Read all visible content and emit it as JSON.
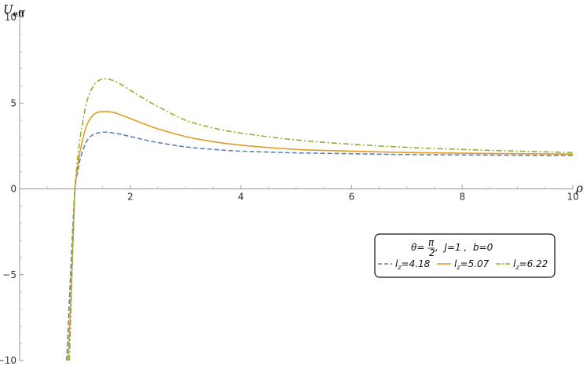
{
  "chart_data": {
    "type": "line",
    "xlabel": "ρ",
    "ylabel_main": "U",
    "ylabel_sub": "eff",
    "xlim": [
      0,
      10
    ],
    "ylim": [
      -10,
      10
    ],
    "x_ticks": [
      2,
      4,
      6,
      8,
      10
    ],
    "y_ticks": [
      -10,
      -5,
      0,
      5,
      10
    ],
    "grid": false,
    "legend": {
      "position": "bottom-right",
      "title_theta": "θ=",
      "title_pi": "π",
      "title_two": "2",
      "title_rest": ",  J=1 ,  b=0"
    },
    "series": [
      {
        "name": "l_z=4.18",
        "label_main": "l",
        "label_sub": "z",
        "label_value": "=4.18",
        "color": "#5e81b5",
        "dash": "dashed",
        "x": [
          0.85,
          0.9,
          0.95,
          1.0,
          1.05,
          1.1,
          1.2,
          1.3,
          1.4,
          1.5,
          1.6,
          1.7,
          1.8,
          2.0,
          2.2,
          2.5,
          3.0,
          3.5,
          4.0,
          5.0,
          6.0,
          7.0,
          8.0,
          9.0,
          10.0
        ],
        "y": [
          -10,
          -6.5,
          -3.0,
          0.0,
          1.0,
          1.8,
          2.7,
          3.1,
          3.25,
          3.3,
          3.3,
          3.25,
          3.2,
          3.05,
          2.9,
          2.7,
          2.45,
          2.3,
          2.2,
          2.1,
          2.05,
          2.0,
          1.98,
          1.96,
          1.95
        ]
      },
      {
        "name": "l_z=5.07",
        "label_main": "l",
        "label_sub": "z",
        "label_value": "=5.07",
        "color": "#e19c24",
        "dash": "solid",
        "x": [
          0.88,
          0.93,
          0.97,
          1.0,
          1.05,
          1.1,
          1.2,
          1.3,
          1.4,
          1.5,
          1.6,
          1.7,
          1.8,
          2.0,
          2.2,
          2.5,
          3.0,
          3.5,
          4.0,
          5.0,
          6.0,
          7.0,
          8.0,
          9.0,
          10.0
        ],
        "y": [
          -10,
          -6.0,
          -2.5,
          0.0,
          1.3,
          2.3,
          3.6,
          4.2,
          4.45,
          4.5,
          4.5,
          4.45,
          4.35,
          4.1,
          3.85,
          3.5,
          3.05,
          2.75,
          2.55,
          2.3,
          2.2,
          2.12,
          2.08,
          2.05,
          2.03
        ]
      },
      {
        "name": "l_z=6.22",
        "label_main": "l",
        "label_sub": "z",
        "label_value": "=6.22",
        "color": "#8fb032",
        "dash": "dashdot",
        "x": [
          0.9,
          0.95,
          0.98,
          1.0,
          1.05,
          1.1,
          1.2,
          1.3,
          1.4,
          1.5,
          1.6,
          1.7,
          1.8,
          2.0,
          2.2,
          2.5,
          3.0,
          3.5,
          4.0,
          5.0,
          6.0,
          7.0,
          8.0,
          9.0,
          10.0
        ],
        "y": [
          -10,
          -4.5,
          -1.6,
          0.0,
          1.8,
          3.1,
          4.9,
          5.8,
          6.25,
          6.4,
          6.4,
          6.3,
          6.15,
          5.75,
          5.35,
          4.8,
          4.0,
          3.55,
          3.25,
          2.85,
          2.6,
          2.42,
          2.3,
          2.2,
          2.12
        ]
      }
    ]
  }
}
